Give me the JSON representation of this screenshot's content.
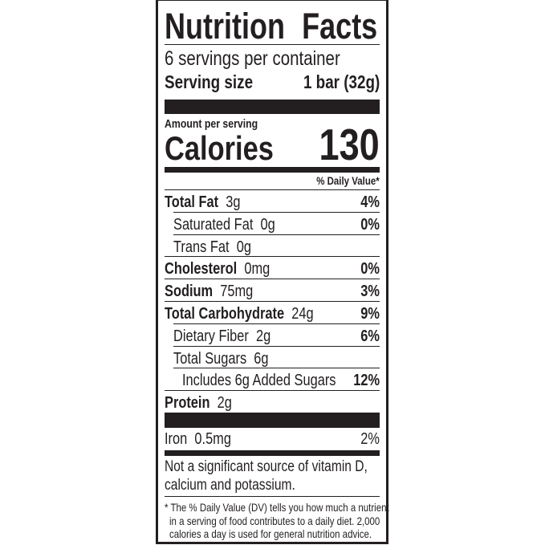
{
  "title": "Nutrition Facts",
  "servings_per_container": "6 servings per container",
  "serving_size_label": "Serving size",
  "serving_size_value": "1 bar (32g)",
  "amount_per_serving": "Amount per serving",
  "calories_label": "Calories",
  "calories_value": "130",
  "dv_header": "% Daily Value*",
  "nutrients": [
    {
      "name": "Total Fat",
      "amount": "3g",
      "dv": "4%"
    },
    {
      "name": "Saturated Fat",
      "amount": "0g",
      "dv": "0%"
    },
    {
      "name": "Trans Fat",
      "amount": "0g",
      "dv": ""
    },
    {
      "name": "Cholesterol",
      "amount": "0mg",
      "dv": "0%"
    },
    {
      "name": "Sodium",
      "amount": "75mg",
      "dv": "3%"
    },
    {
      "name": "Total Carbohydrate",
      "amount": "24g",
      "dv": "9%"
    },
    {
      "name": "Dietary Fiber",
      "amount": "2g",
      "dv": "6%"
    },
    {
      "name": "Total Sugars",
      "amount": "6g",
      "dv": ""
    },
    {
      "name": "Includes 6g Added Sugars",
      "amount": "",
      "dv": "12%"
    },
    {
      "name": "Protein",
      "amount": "2g",
      "dv": ""
    }
  ],
  "iron": {
    "name": "Iron",
    "amount": "0.5mg",
    "dv": "2%"
  },
  "not_significant": [
    "Not a significant source of vitamin D,",
    "calcium and potassium."
  ],
  "footnote": [
    "* The % Daily Value (DV) tells you how much a nutrient",
    "in a serving of food contributes to a daily diet. 2,000",
    "calories a day is used for general nutrition advice."
  ]
}
